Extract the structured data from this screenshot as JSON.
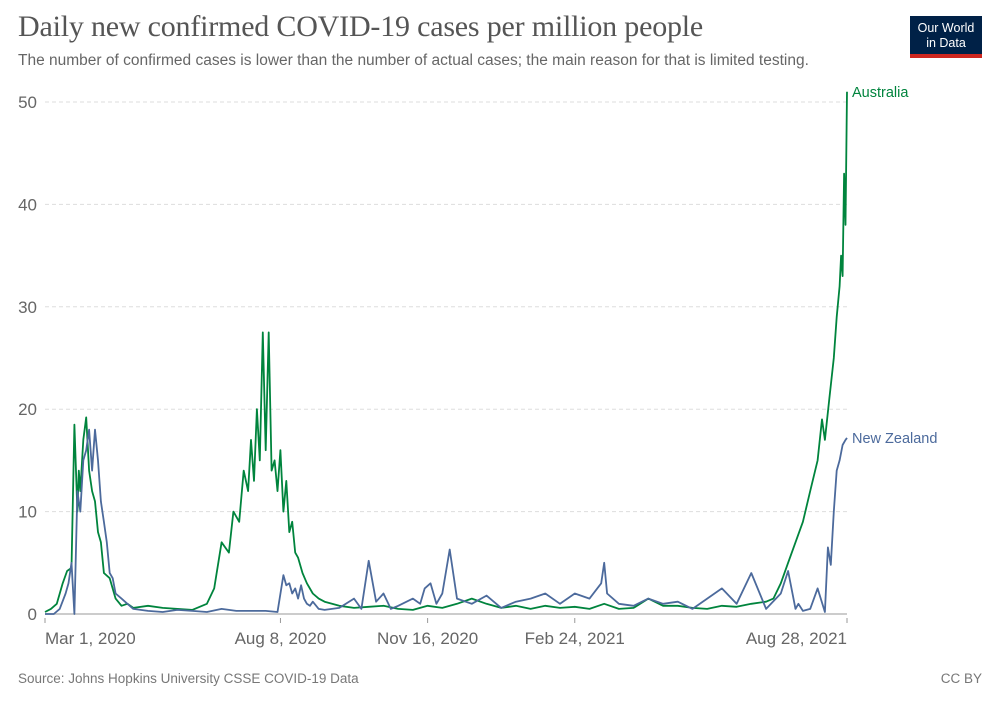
{
  "header": {
    "title": "Daily new confirmed COVID-19 cases per million people",
    "subtitle": "The number of confirmed cases is lower than the number of actual cases; the main reason for that is limited testing.",
    "logo_line1": "Our World",
    "logo_line2": "in Data"
  },
  "footer": {
    "source": "Source: Johns Hopkins University CSSE COVID-19 Data",
    "license": "CC BY"
  },
  "chart_data": {
    "type": "line",
    "title": "Daily new confirmed COVID-19 cases per million people",
    "subtitle": "The number of confirmed cases is lower than the number of actual cases; the main reason for that is limited testing.",
    "xlabel": "",
    "ylabel": "",
    "ylim": [
      0,
      50
    ],
    "yticks": [
      0,
      10,
      20,
      30,
      40,
      50
    ],
    "xticks": [
      {
        "label": "Mar 1, 2020",
        "day": 0
      },
      {
        "label": "Aug 8, 2020",
        "day": 160
      },
      {
        "label": "Nov 16, 2020",
        "day": 260
      },
      {
        "label": "Feb 24, 2021",
        "day": 360
      },
      {
        "label": "Aug 28, 2021",
        "day": 545
      }
    ],
    "xlim_days": [
      0,
      545
    ],
    "x_unit": "days since Mar 1, 2020",
    "grid": true,
    "legend": "inline-right",
    "series": [
      {
        "name": "Australia",
        "color": "#00843d",
        "x": [
          0,
          4,
          8,
          12,
          15,
          18,
          20,
          22,
          23,
          24,
          26,
          28,
          30,
          32,
          34,
          36,
          38,
          40,
          44,
          48,
          52,
          56,
          60,
          70,
          80,
          90,
          100,
          110,
          115,
          120,
          125,
          128,
          132,
          135,
          138,
          140,
          142,
          144,
          146,
          148,
          150,
          152,
          154,
          156,
          158,
          160,
          162,
          164,
          166,
          168,
          170,
          172,
          175,
          178,
          182,
          186,
          190,
          195,
          200,
          210,
          220,
          230,
          240,
          250,
          260,
          270,
          280,
          290,
          300,
          310,
          320,
          330,
          340,
          350,
          360,
          370,
          380,
          390,
          400,
          410,
          420,
          430,
          440,
          450,
          460,
          470,
          480,
          490,
          495,
          500,
          505,
          510,
          515,
          520,
          525,
          528,
          530,
          533,
          536,
          538,
          540,
          541,
          542,
          543,
          544,
          545
        ],
        "y": [
          0.2,
          0.5,
          1.0,
          3.0,
          4.2,
          4.5,
          18.5,
          10,
          14,
          12,
          17,
          19.2,
          14,
          12,
          11,
          8,
          7,
          4,
          3.5,
          1.5,
          0.8,
          1.0,
          0.6,
          0.8,
          0.6,
          0.5,
          0.4,
          1.0,
          2.5,
          7,
          6,
          10,
          9,
          14,
          12,
          17,
          13,
          20,
          15,
          27.5,
          16,
          27.5,
          14,
          15,
          12,
          16,
          10,
          13,
          8,
          9,
          6,
          5.5,
          4,
          3,
          2,
          1.5,
          1.2,
          1.0,
          0.8,
          0.6,
          0.7,
          0.8,
          0.5,
          0.4,
          0.8,
          0.6,
          1.0,
          1.5,
          1.0,
          0.6,
          0.8,
          0.5,
          0.8,
          0.6,
          0.7,
          0.5,
          1.0,
          0.5,
          0.6,
          1.5,
          0.8,
          0.8,
          0.6,
          0.5,
          0.8,
          0.7,
          1.0,
          1.2,
          1.5,
          3,
          5,
          7,
          9,
          12,
          15,
          19,
          17,
          21,
          25,
          29,
          32,
          35,
          33,
          43,
          38,
          51
        ]
      },
      {
        "name": "New Zealand",
        "color": "#4c6a9c",
        "x": [
          0,
          6,
          10,
          14,
          16,
          18,
          20,
          22,
          24,
          26,
          28,
          30,
          32,
          34,
          36,
          38,
          40,
          42,
          44,
          46,
          48,
          52,
          56,
          60,
          70,
          80,
          90,
          100,
          110,
          120,
          130,
          140,
          150,
          158,
          162,
          164,
          166,
          168,
          170,
          172,
          174,
          176,
          178,
          180,
          182,
          186,
          190,
          200,
          210,
          215,
          220,
          225,
          230,
          235,
          240,
          250,
          255,
          258,
          262,
          266,
          270,
          275,
          280,
          290,
          300,
          310,
          320,
          330,
          340,
          350,
          360,
          370,
          378,
          380,
          382,
          390,
          400,
          410,
          420,
          430,
          440,
          450,
          460,
          470,
          480,
          490,
          500,
          505,
          510,
          512,
          515,
          520,
          525,
          530,
          532,
          534,
          536,
          538,
          540,
          542,
          544,
          545
        ],
        "y": [
          0,
          0,
          0.5,
          2,
          3,
          5,
          0,
          12,
          10,
          15,
          16,
          18,
          14,
          18,
          15,
          11,
          9,
          7,
          4,
          3.5,
          2,
          1.5,
          1.0,
          0.5,
          0.3,
          0.2,
          0.4,
          0.3,
          0.2,
          0.5,
          0.3,
          0.3,
          0.3,
          0.2,
          3.8,
          2.8,
          3,
          2,
          2.5,
          1.5,
          2.8,
          1.5,
          1.0,
          0.8,
          1.2,
          0.5,
          0.4,
          0.6,
          1.5,
          0.5,
          5.2,
          1.2,
          2,
          0.5,
          0.8,
          1.5,
          1.0,
          2.5,
          3,
          1,
          2,
          6.3,
          1.5,
          1.0,
          1.8,
          0.6,
          1.2,
          1.5,
          2.0,
          1.0,
          2.0,
          1.5,
          3,
          5.0,
          2,
          1.0,
          0.8,
          1.5,
          1.0,
          1.2,
          0.5,
          1.5,
          2.5,
          1.0,
          4.0,
          0.5,
          2.0,
          4.2,
          0.5,
          1.0,
          0.3,
          0.5,
          2.5,
          0.2,
          6.5,
          4.8,
          10,
          14,
          15,
          16.5,
          17,
          17.2
        ]
      }
    ]
  }
}
